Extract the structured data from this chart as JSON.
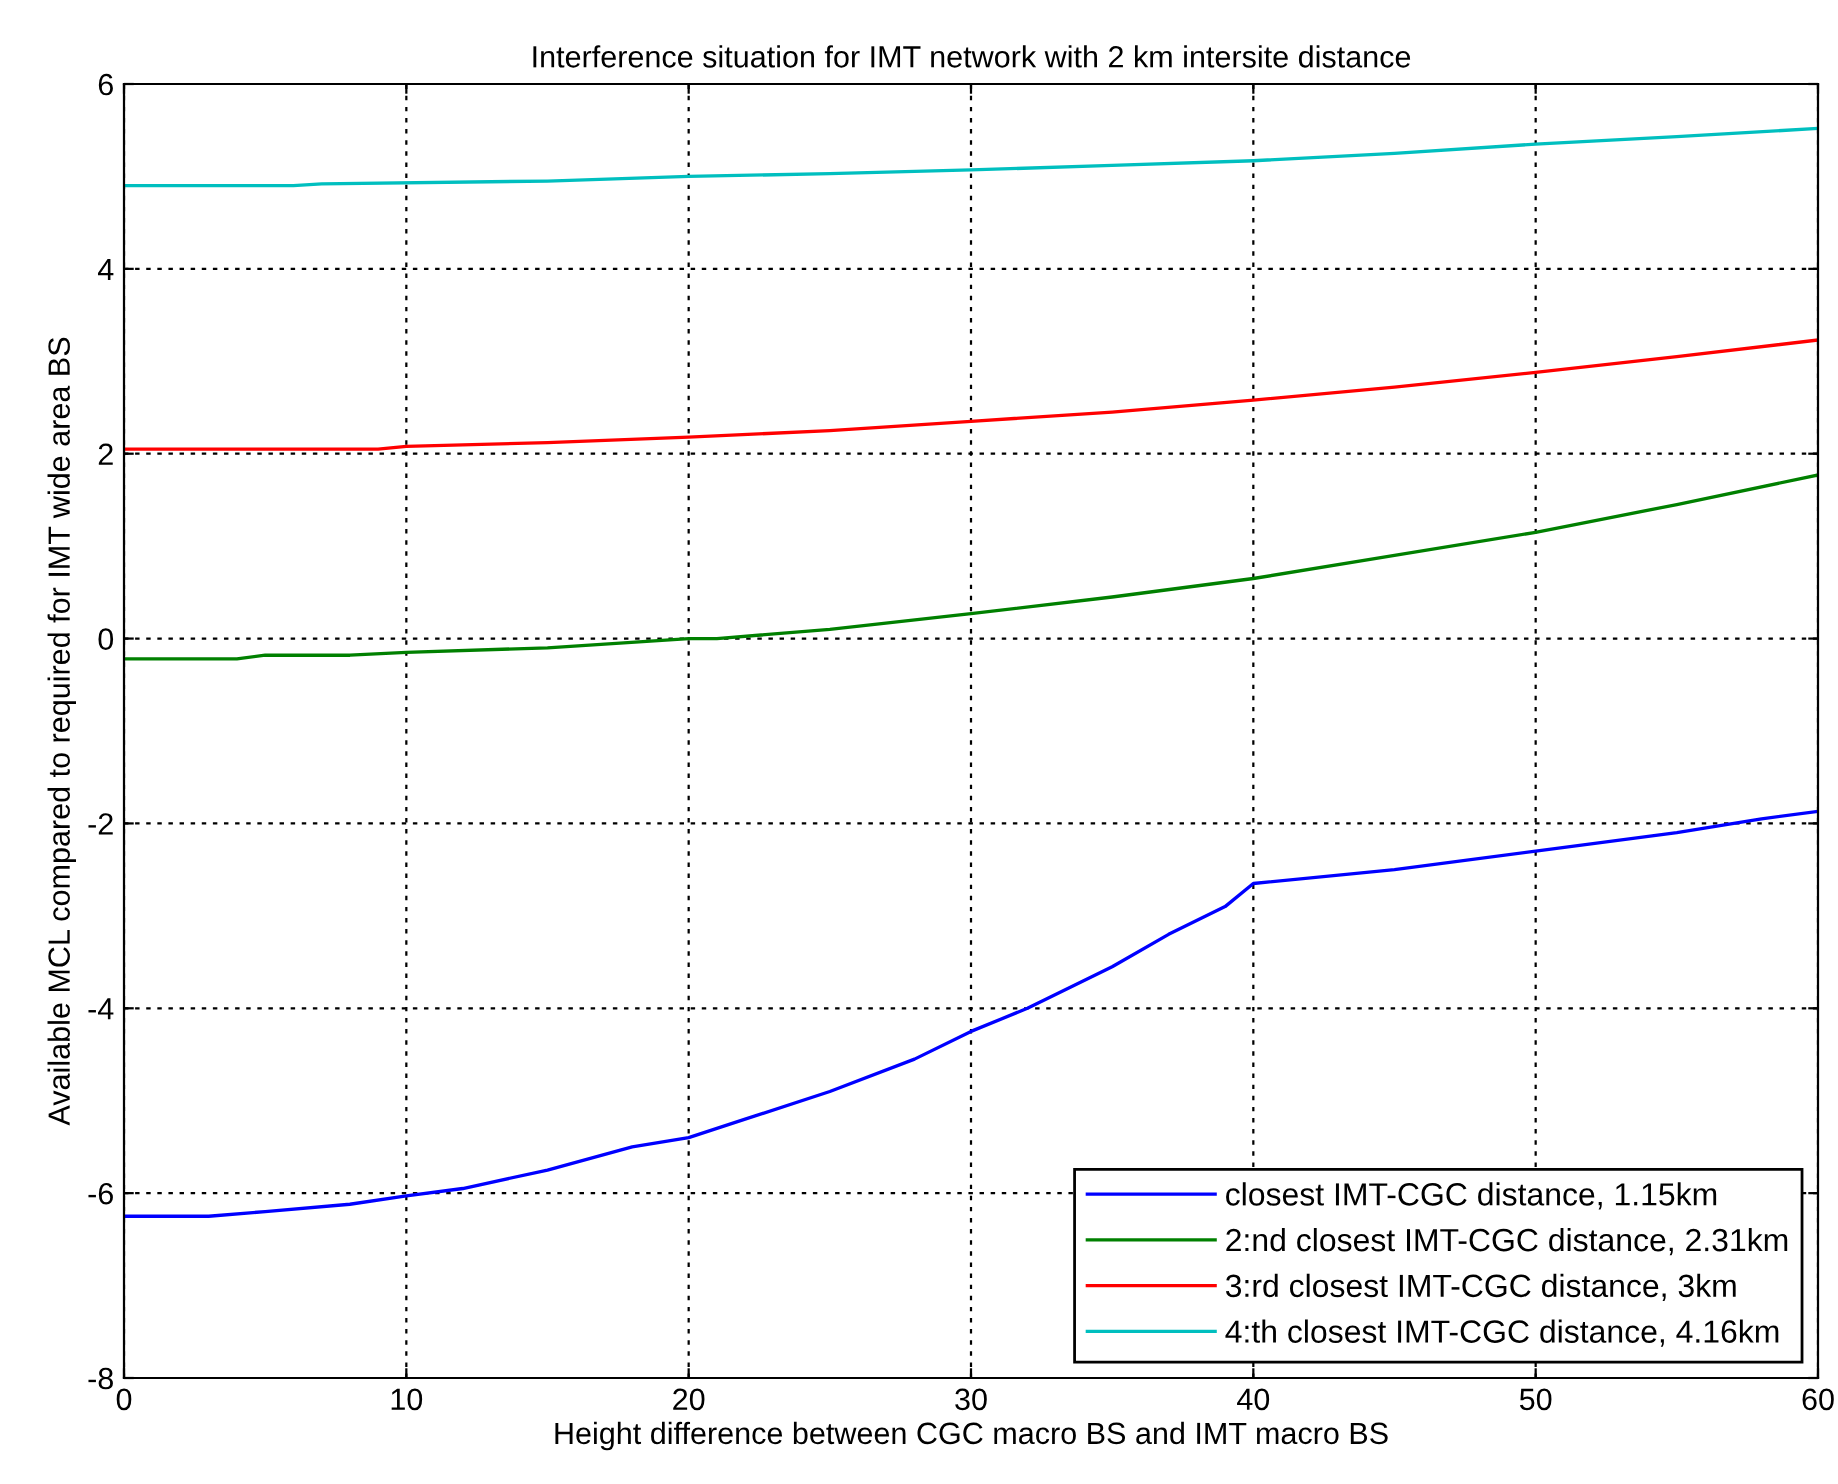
{
  "chart_data": {
    "type": "line",
    "title": "Interference situation for IMT network with 2 km intersite distance",
    "xlabel": "Height difference between CGC macro BS and IMT macro BS",
    "ylabel": "Available MCL compared to required for IMT wide area BS",
    "xlim": [
      0,
      60
    ],
    "xticks": [
      0,
      10,
      20,
      30,
      40,
      50,
      60
    ],
    "ylim": [
      -8,
      6
    ],
    "yticks": [
      -8,
      -6,
      -4,
      -2,
      0,
      2,
      4,
      6
    ],
    "grid": true,
    "legend": "bottom right",
    "marker": "none",
    "line_style": "solid",
    "series": [
      {
        "name": "closest IMT-CGC distance, 1.15km",
        "color": "#0000ff",
        "x": [
          0,
          3,
          5,
          8,
          10,
          12,
          15,
          18,
          20,
          22,
          25,
          28,
          30,
          32,
          35,
          37,
          39,
          40,
          45,
          50,
          55,
          58,
          60
        ],
        "values": [
          -6.25,
          -6.25,
          -6.2,
          -6.12,
          -6.03,
          -5.95,
          -5.75,
          -5.5,
          -5.4,
          -5.2,
          -4.9,
          -4.55,
          -4.25,
          -4.0,
          -3.55,
          -3.2,
          -2.9,
          -2.65,
          -2.5,
          -2.3,
          -2.1,
          -1.95,
          -1.87
        ]
      },
      {
        "name": "2:nd closest IMT-CGC distance, 2.31km",
        "color": "#008000",
        "x": [
          0,
          4,
          5,
          8,
          10,
          15,
          20,
          21,
          25,
          30,
          35,
          40,
          45,
          50,
          55,
          60
        ],
        "values": [
          -0.22,
          -0.22,
          -0.18,
          -0.18,
          -0.15,
          -0.1,
          0.0,
          0.0,
          0.1,
          0.27,
          0.45,
          0.65,
          0.9,
          1.15,
          1.45,
          1.77
        ]
      },
      {
        "name": "3:rd closest IMT-CGC distance, 3km",
        "color": "#ff0000",
        "x": [
          0,
          9,
          10,
          15,
          20,
          25,
          30,
          35,
          40,
          45,
          50,
          55,
          60
        ],
        "values": [
          2.05,
          2.05,
          2.08,
          2.12,
          2.18,
          2.25,
          2.35,
          2.45,
          2.58,
          2.72,
          2.88,
          3.05,
          3.23
        ]
      },
      {
        "name": "4:th closest IMT-CGC distance, 4.16km",
        "color": "#00bfbf",
        "x": [
          0,
          6,
          7,
          15,
          20,
          25,
          30,
          35,
          40,
          45,
          50,
          55,
          60
        ],
        "values": [
          4.9,
          4.9,
          4.92,
          4.95,
          5.0,
          5.03,
          5.07,
          5.12,
          5.17,
          5.25,
          5.35,
          5.43,
          5.52
        ]
      }
    ]
  }
}
